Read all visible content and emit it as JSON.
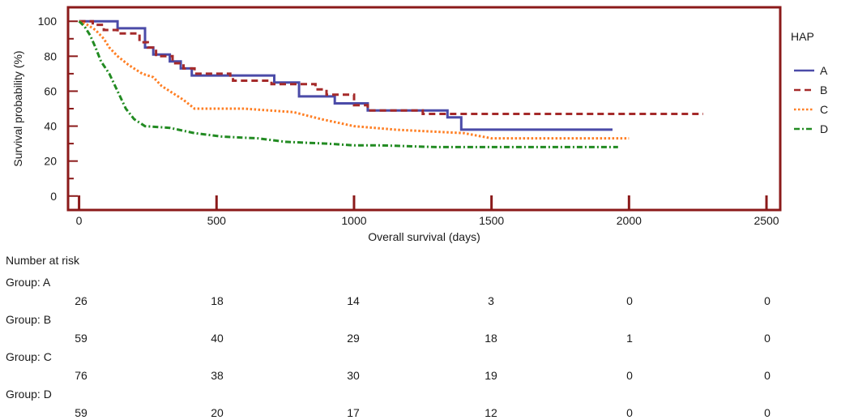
{
  "chart_data": {
    "type": "line",
    "ylabel": "Survival probability (%)",
    "xlabel": "Overall survival (days)",
    "xlim": [
      -40,
      2550
    ],
    "ylim": [
      -8,
      108
    ],
    "x_ticks": [
      0,
      500,
      1000,
      1500,
      2000,
      2500
    ],
    "y_ticks": [
      0,
      20,
      40,
      60,
      80,
      100
    ],
    "grid": false,
    "frame_color": "#8B1A1A",
    "legend": {
      "title": "HAP",
      "position": "right",
      "entries": [
        "A",
        "B",
        "C",
        "D"
      ]
    },
    "series": [
      {
        "name": "A",
        "color": "#4B4BA8",
        "dash": "solid",
        "points": [
          [
            0,
            100
          ],
          [
            140,
            100
          ],
          [
            140,
            96
          ],
          [
            240,
            96
          ],
          [
            240,
            85
          ],
          [
            270,
            85
          ],
          [
            270,
            81
          ],
          [
            330,
            81
          ],
          [
            330,
            77
          ],
          [
            370,
            77
          ],
          [
            370,
            73
          ],
          [
            410,
            73
          ],
          [
            410,
            69
          ],
          [
            710,
            69
          ],
          [
            710,
            65
          ],
          [
            800,
            65
          ],
          [
            800,
            57
          ],
          [
            930,
            57
          ],
          [
            930,
            53
          ],
          [
            1050,
            53
          ],
          [
            1050,
            49
          ],
          [
            1340,
            49
          ],
          [
            1340,
            45
          ],
          [
            1390,
            45
          ],
          [
            1390,
            38
          ],
          [
            1940,
            38
          ]
        ]
      },
      {
        "name": "B",
        "color": "#A52A2A",
        "dash": "dashed",
        "points": [
          [
            0,
            100
          ],
          [
            50,
            100
          ],
          [
            50,
            98
          ],
          [
            90,
            98
          ],
          [
            90,
            95
          ],
          [
            140,
            95
          ],
          [
            140,
            93
          ],
          [
            220,
            93
          ],
          [
            220,
            88
          ],
          [
            250,
            88
          ],
          [
            250,
            85
          ],
          [
            280,
            85
          ],
          [
            280,
            80
          ],
          [
            340,
            80
          ],
          [
            340,
            76
          ],
          [
            380,
            76
          ],
          [
            380,
            73
          ],
          [
            420,
            73
          ],
          [
            420,
            70
          ],
          [
            550,
            70
          ],
          [
            550,
            68
          ],
          [
            560,
            68
          ],
          [
            560,
            66
          ],
          [
            700,
            66
          ],
          [
            700,
            64
          ],
          [
            860,
            64
          ],
          [
            860,
            61
          ],
          [
            900,
            61
          ],
          [
            900,
            58
          ],
          [
            1000,
            58
          ],
          [
            1000,
            52
          ],
          [
            1050,
            52
          ],
          [
            1050,
            49
          ],
          [
            1250,
            49
          ],
          [
            1250,
            47
          ],
          [
            2270,
            47
          ]
        ]
      },
      {
        "name": "C",
        "color": "#FF7F24",
        "dash": "dotted",
        "points": [
          [
            0,
            100
          ],
          [
            30,
            98
          ],
          [
            60,
            95
          ],
          [
            90,
            90
          ],
          [
            110,
            85
          ],
          [
            140,
            80
          ],
          [
            180,
            75
          ],
          [
            230,
            70
          ],
          [
            270,
            68
          ],
          [
            300,
            63
          ],
          [
            380,
            55
          ],
          [
            420,
            50
          ],
          [
            600,
            50
          ],
          [
            780,
            48
          ],
          [
            880,
            44
          ],
          [
            1000,
            40
          ],
          [
            1150,
            38
          ],
          [
            1400,
            36
          ],
          [
            1500,
            33
          ],
          [
            2000,
            33
          ]
        ]
      },
      {
        "name": "D",
        "color": "#228B22",
        "dash": "dashdot",
        "points": [
          [
            0,
            100
          ],
          [
            20,
            97
          ],
          [
            40,
            92
          ],
          [
            60,
            85
          ],
          [
            80,
            77
          ],
          [
            110,
            70
          ],
          [
            140,
            60
          ],
          [
            170,
            50
          ],
          [
            200,
            44
          ],
          [
            240,
            40
          ],
          [
            330,
            39
          ],
          [
            420,
            36
          ],
          [
            520,
            34
          ],
          [
            650,
            33
          ],
          [
            750,
            31
          ],
          [
            900,
            30
          ],
          [
            1000,
            29
          ],
          [
            1100,
            29
          ],
          [
            1300,
            28
          ],
          [
            1960,
            28
          ]
        ]
      }
    ]
  },
  "risk_table": {
    "title": "Number at risk",
    "groups": [
      {
        "label": "Group: A",
        "values": [
          "26",
          "18",
          "14",
          "3",
          "0",
          "0"
        ]
      },
      {
        "label": "Group: B",
        "values": [
          "59",
          "40",
          "29",
          "18",
          "1",
          "0"
        ]
      },
      {
        "label": "Group: C",
        "values": [
          "76",
          "38",
          "30",
          "19",
          "0",
          "0"
        ]
      },
      {
        "label": "Group: D",
        "values": [
          "59",
          "20",
          "17",
          "12",
          "0",
          "0"
        ]
      }
    ]
  }
}
